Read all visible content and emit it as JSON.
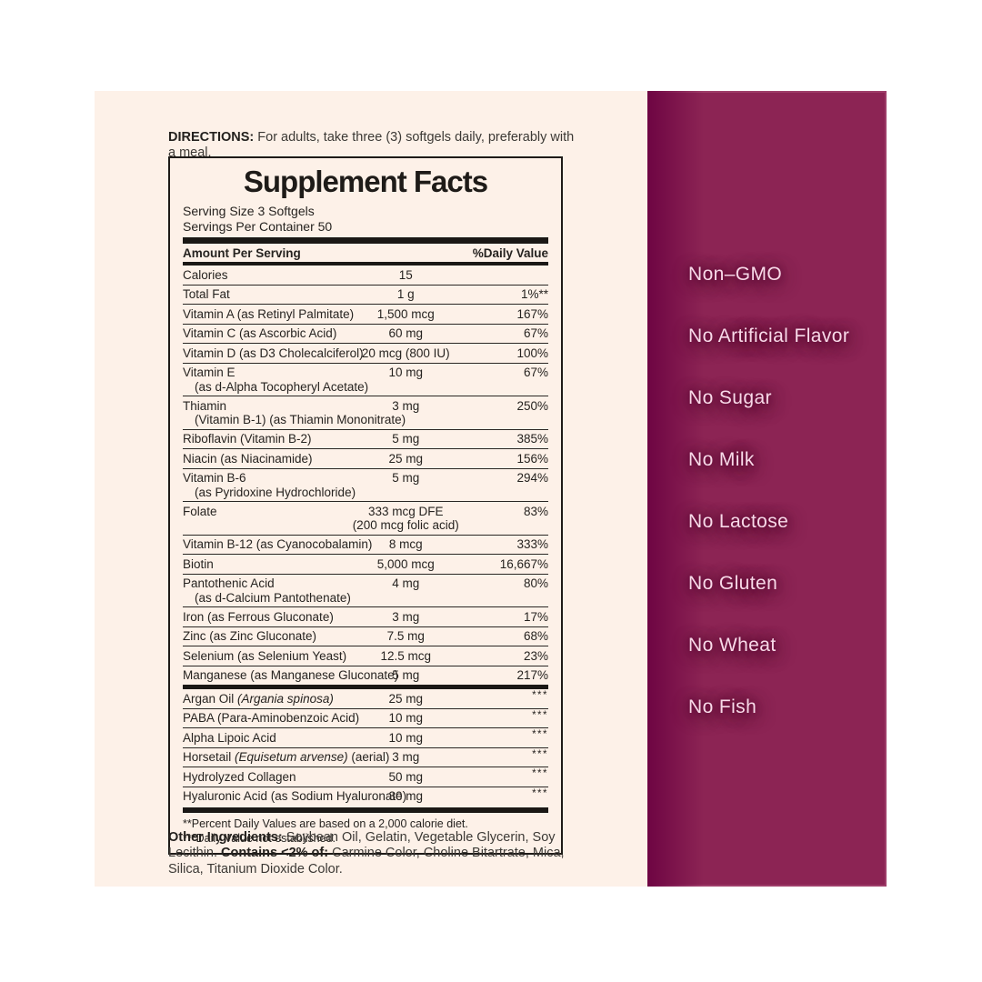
{
  "label": {
    "bg_color": "#fdf1e8",
    "directions": {
      "parts": [
        {
          "b": true,
          "t": "DIRECTIONS:"
        },
        {
          "b": false,
          "t": " For adults, take three (3) softgels daily, preferably with a meal."
        }
      ]
    },
    "facts": {
      "title": "Supplement Facts",
      "serving_size": "Serving Size 3 Softgels",
      "servings_per_container": "Servings Per Container 50",
      "col_left": "Amount Per Serving",
      "col_right": "%Daily Value",
      "rows": [
        {
          "name": "Calories",
          "amount": "15",
          "dv": ""
        },
        {
          "name": "Total Fat",
          "amount": "1 g",
          "dv": "1%**"
        },
        {
          "name": "Vitamin A (as Retinyl Palmitate)",
          "amount": "1,500 mcg",
          "dv": "167%"
        },
        {
          "name": "Vitamin C (as Ascorbic Acid)",
          "amount": "60 mg",
          "dv": "67%"
        },
        {
          "name": "Vitamin D (as D3 Cholecalciferol)",
          "amount": "20 mcg (800 IU)",
          "dv": "100%"
        },
        {
          "name": "Vitamin E",
          "sub": "(as d-Alpha Tocopheryl Acetate)",
          "amount": "10 mg",
          "dv": "67%"
        },
        {
          "name": "Thiamin",
          "sub": "(Vitamin B-1) (as Thiamin Mononitrate)",
          "amount": "3 mg",
          "dv": "250%"
        },
        {
          "name": "Riboflavin (Vitamin B-2)",
          "amount": "5 mg",
          "dv": "385%"
        },
        {
          "name": "Niacin (as Niacinamide)",
          "amount": "25 mg",
          "dv": "156%"
        },
        {
          "name": "Vitamin B-6",
          "sub": "(as Pyridoxine Hydrochloride)",
          "amount": "5 mg",
          "dv": "294%"
        },
        {
          "name": "Folate",
          "amount": "333 mcg DFE",
          "amount2": "(200 mcg folic acid)",
          "dv": "83%"
        },
        {
          "name": "Vitamin B-12 (as Cyanocobalamin)",
          "amount": "8 mcg",
          "dv": "333%"
        },
        {
          "name": "Biotin",
          "amount": "5,000 mcg",
          "dv": "16,667%"
        },
        {
          "name": "Pantothenic Acid",
          "sub": "(as d-Calcium Pantothenate)",
          "amount": "4 mg",
          "dv": "80%"
        },
        {
          "name": "Iron (as Ferrous Gluconate)",
          "amount": "3 mg",
          "dv": "17%"
        },
        {
          "name": "Zinc (as Zinc Gluconate)",
          "amount": "7.5 mg",
          "dv": "68%"
        },
        {
          "name": "Selenium (as Selenium Yeast)",
          "amount": "12.5 mcg",
          "dv": "23%"
        },
        {
          "name": "Manganese (as Manganese Gluconate)",
          "amount": "5 mg",
          "dv": "217%"
        },
        {
          "bar": true
        },
        {
          "name_parts": [
            [
              "Argan Oil ",
              false
            ],
            [
              "(Argania spinosa)",
              true
            ]
          ],
          "amount": "25 mg",
          "dv": "***",
          "stars": true
        },
        {
          "name": "PABA (Para-Aminobenzoic Acid)",
          "amount": "10 mg",
          "dv": "***",
          "stars": true
        },
        {
          "name": "Alpha Lipoic Acid",
          "amount": "10 mg",
          "dv": "***",
          "stars": true
        },
        {
          "name_parts": [
            [
              "Horsetail ",
              false
            ],
            [
              "(Equisetum arvense)",
              true
            ],
            [
              " (aerial)",
              false
            ]
          ],
          "amount": "3 mg",
          "dv": "***",
          "stars": true
        },
        {
          "name": "Hydrolyzed Collagen",
          "amount": "50 mg",
          "dv": "***",
          "stars": true
        },
        {
          "name": "Hyaluronic Acid (as Sodium Hyaluronate)",
          "amount": "30 mg",
          "dv": "***",
          "stars": true
        }
      ],
      "footnotes": [
        "**Percent Daily Values are based on a 2,000 calorie diet.",
        "***Daily Value not established."
      ]
    },
    "other_ingredients": {
      "parts": [
        {
          "b": true,
          "t": "Other Ingredients:"
        },
        {
          "b": false,
          "t": " Soybean Oil, Gelatin, Vegetable Glycerin, Soy Lecithin. "
        },
        {
          "b": true,
          "t": "Contains <2% of:"
        },
        {
          "b": false,
          "t": " Carmine Color, Choline Bitartrate, Mica, Silica, Titanium Dioxide Color."
        }
      ]
    }
  },
  "claims_panel": {
    "bg_color": "#8c2454",
    "edge_shadow_color": "#6e0543",
    "text_color": "#f8d9e8",
    "items": [
      "Non–GMO",
      "No Artificial Flavor",
      "No Sugar",
      "No Milk",
      "No Lactose",
      "No Gluten",
      "No Wheat",
      "No Fish"
    ]
  }
}
